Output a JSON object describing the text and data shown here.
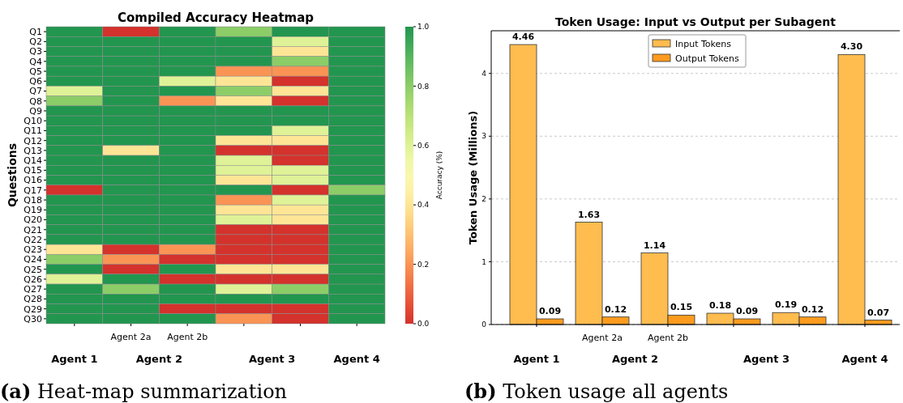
{
  "chart_data": [
    {
      "type": "heatmap",
      "title": "Compiled Accuracy Heatmap",
      "ylabel": "Questions",
      "clabel": "Accuracy (%)",
      "categories": [
        null,
        "Agent 2a",
        "Agent 2b",
        null,
        null,
        null
      ],
      "y_categories": [
        "Q1",
        "Q2",
        "Q3",
        "Q4",
        "Q5",
        "Q6",
        "Q7",
        "Q8",
        "Q9",
        "Q10",
        "Q11",
        "Q12",
        "Q13",
        "Q14",
        "Q15",
        "Q16",
        "Q17",
        "Q18",
        "Q19",
        "Q20",
        "Q21",
        "Q22",
        "Q23",
        "Q24",
        "Q25",
        "Q26",
        "Q27",
        "Q28",
        "Q29",
        "Q30"
      ],
      "cells": [
        [
          1,
          0,
          1,
          0.8,
          1,
          1
        ],
        [
          1,
          1,
          1,
          1,
          0.6,
          1
        ],
        [
          1,
          1,
          1,
          1,
          0.4,
          1
        ],
        [
          1,
          1,
          1,
          1,
          0.8,
          1
        ],
        [
          1,
          1,
          1,
          0.2,
          0.2,
          1
        ],
        [
          1,
          1,
          0.6,
          0.4,
          0,
          1
        ],
        [
          0.6,
          1,
          1,
          0.8,
          0.4,
          1
        ],
        [
          0.8,
          1,
          0.2,
          0.4,
          0,
          1
        ],
        [
          1,
          1,
          1,
          1,
          1,
          1
        ],
        [
          1,
          1,
          1,
          1,
          1,
          1
        ],
        [
          1,
          1,
          1,
          1,
          0.6,
          1
        ],
        [
          1,
          1,
          1,
          0.4,
          0.4,
          1
        ],
        [
          1,
          0.4,
          1,
          0,
          0,
          1
        ],
        [
          1,
          1,
          1,
          0.6,
          0,
          1
        ],
        [
          1,
          1,
          1,
          0.6,
          0.6,
          1
        ],
        [
          1,
          1,
          1,
          0.4,
          0.6,
          1
        ],
        [
          0,
          1,
          1,
          1,
          0,
          0.8
        ],
        [
          1,
          1,
          1,
          0.2,
          0.6,
          1
        ],
        [
          1,
          1,
          1,
          0.4,
          0.4,
          1
        ],
        [
          1,
          1,
          1,
          0.6,
          0.4,
          1
        ],
        [
          1,
          1,
          1,
          0,
          0,
          1
        ],
        [
          1,
          1,
          1,
          0,
          0,
          1
        ],
        [
          0.4,
          0,
          0.2,
          0,
          0,
          1
        ],
        [
          0.8,
          0.2,
          0,
          0,
          0,
          1
        ],
        [
          1,
          0,
          1,
          0.4,
          0.4,
          1
        ],
        [
          0.6,
          1,
          0,
          0,
          0,
          1
        ],
        [
          1,
          0.8,
          1,
          0.6,
          0.8,
          1
        ],
        [
          1,
          1,
          1,
          1,
          1,
          1
        ],
        [
          1,
          1,
          0,
          0,
          0,
          1
        ],
        [
          1,
          1,
          1,
          0.2,
          0,
          1
        ]
      ],
      "clim": [
        0,
        1
      ],
      "cticks": [
        {
          "value": 0,
          "label": "0.0"
        },
        {
          "value": 0.2,
          "label": "0.2"
        },
        {
          "value": 0.4,
          "label": "0.4"
        },
        {
          "value": 0.6,
          "label": "0.6"
        },
        {
          "value": 0.8,
          "label": "0.8"
        },
        {
          "value": 1,
          "label": "1.0"
        }
      ],
      "annotations": [
        "Agent 1",
        "Agent 2",
        "Agent 3",
        "Agent 4",
        "(a) Heat-map summarization"
      ]
    },
    {
      "type": "bar",
      "title": "Token Usage: Input vs Output per Subagent",
      "ylabel": "Token Usage (Millions)",
      "categories": [
        null,
        "Agent 2a",
        "Agent 2b",
        null,
        null,
        null
      ],
      "series": [
        {
          "name": "Input Tokens",
          "color": "#ffbc4f",
          "values": [
            4.46,
            1.63,
            1.14,
            0.18,
            0.19,
            4.3
          ],
          "value_labels": [
            "4.46",
            "1.63",
            "1.14",
            "0.18",
            "0.19",
            "4.30"
          ]
        },
        {
          "name": "Output Tokens",
          "color": "#fc9b1e",
          "values": [
            0.09,
            0.12,
            0.15,
            0.09,
            0.12,
            0.07
          ],
          "value_labels": [
            "0.09",
            "0.12",
            "0.15",
            "0.09",
            "0.12",
            "0.07"
          ]
        }
      ],
      "ylim": [
        0,
        4.68
      ],
      "yticks": [
        0,
        1,
        2,
        3,
        4
      ],
      "grid": "y",
      "legend": "top",
      "annotations": [
        "Agent 1",
        "Agent 2",
        "Agent 3",
        "Agent 4",
        "(b) Token usage all agents"
      ]
    }
  ]
}
